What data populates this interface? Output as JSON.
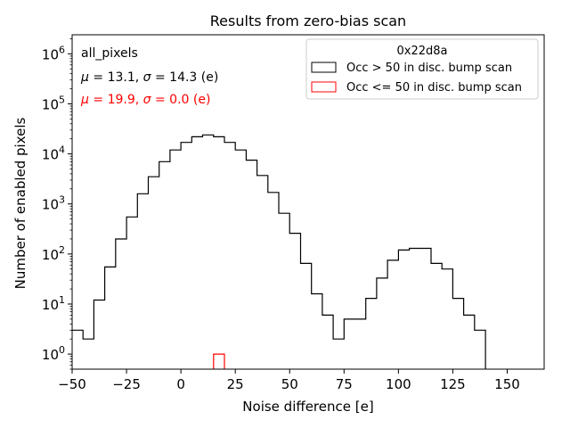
{
  "chart_data": {
    "type": "histogram",
    "title": "Results from zero-bias scan",
    "xlabel": "Noise difference [e]",
    "ylabel": "Number of enabled pixels",
    "xlim": [
      -50,
      167
    ],
    "ylim_log": [
      0.5,
      2400000
    ],
    "yscale": "log",
    "xticks": [
      -50,
      -25,
      0,
      25,
      50,
      75,
      100,
      125,
      150
    ],
    "xtick_labels": [
      "−50",
      "−25",
      "0",
      "25",
      "50",
      "75",
      "100",
      "125",
      "150"
    ],
    "yticks": [
      {
        "value": 1,
        "base": "10",
        "exp": "0"
      },
      {
        "value": 10,
        "base": "10",
        "exp": "1"
      },
      {
        "value": 100,
        "base": "10",
        "exp": "2"
      },
      {
        "value": 1000,
        "base": "10",
        "exp": "3"
      },
      {
        "value": 10000,
        "base": "10",
        "exp": "4"
      },
      {
        "value": 100000,
        "base": "10",
        "exp": "5"
      },
      {
        "value": 1000000,
        "base": "10",
        "exp": "6"
      }
    ],
    "annotations": {
      "label": "all_pixels",
      "stats_black": {
        "mu": "13.1",
        "sigma": "14.3",
        "unit": "(e)"
      },
      "stats_red": {
        "mu": "19.9",
        "sigma": "0.0",
        "unit": "(e)"
      }
    },
    "legend": {
      "title": "0x22d8a",
      "position": "top-right",
      "entries": [
        {
          "label": "Occ > 50 in disc. bump scan",
          "color": "#000000"
        },
        {
          "label": "Occ <= 50 in disc. bump scan",
          "color": "#ff0000"
        }
      ]
    },
    "bin_width": 5,
    "series": [
      {
        "name": "Occ > 50 in disc. bump scan",
        "color": "#000000",
        "bin_edges_start": -50,
        "values": [
          3,
          2,
          12,
          55,
          200,
          550,
          1600,
          3500,
          7000,
          12000,
          17000,
          22000,
          24000,
          22000,
          17000,
          12000,
          7500,
          3700,
          1700,
          650,
          260,
          65,
          16,
          6,
          2,
          5,
          5,
          13,
          33,
          75,
          120,
          130,
          130,
          65,
          50,
          13,
          6,
          3,
          0
        ]
      },
      {
        "name": "Occ <= 50 in disc. bump scan",
        "color": "#ff0000",
        "bins": [
          {
            "start": 15,
            "end": 20,
            "value": 1
          }
        ]
      }
    ]
  }
}
